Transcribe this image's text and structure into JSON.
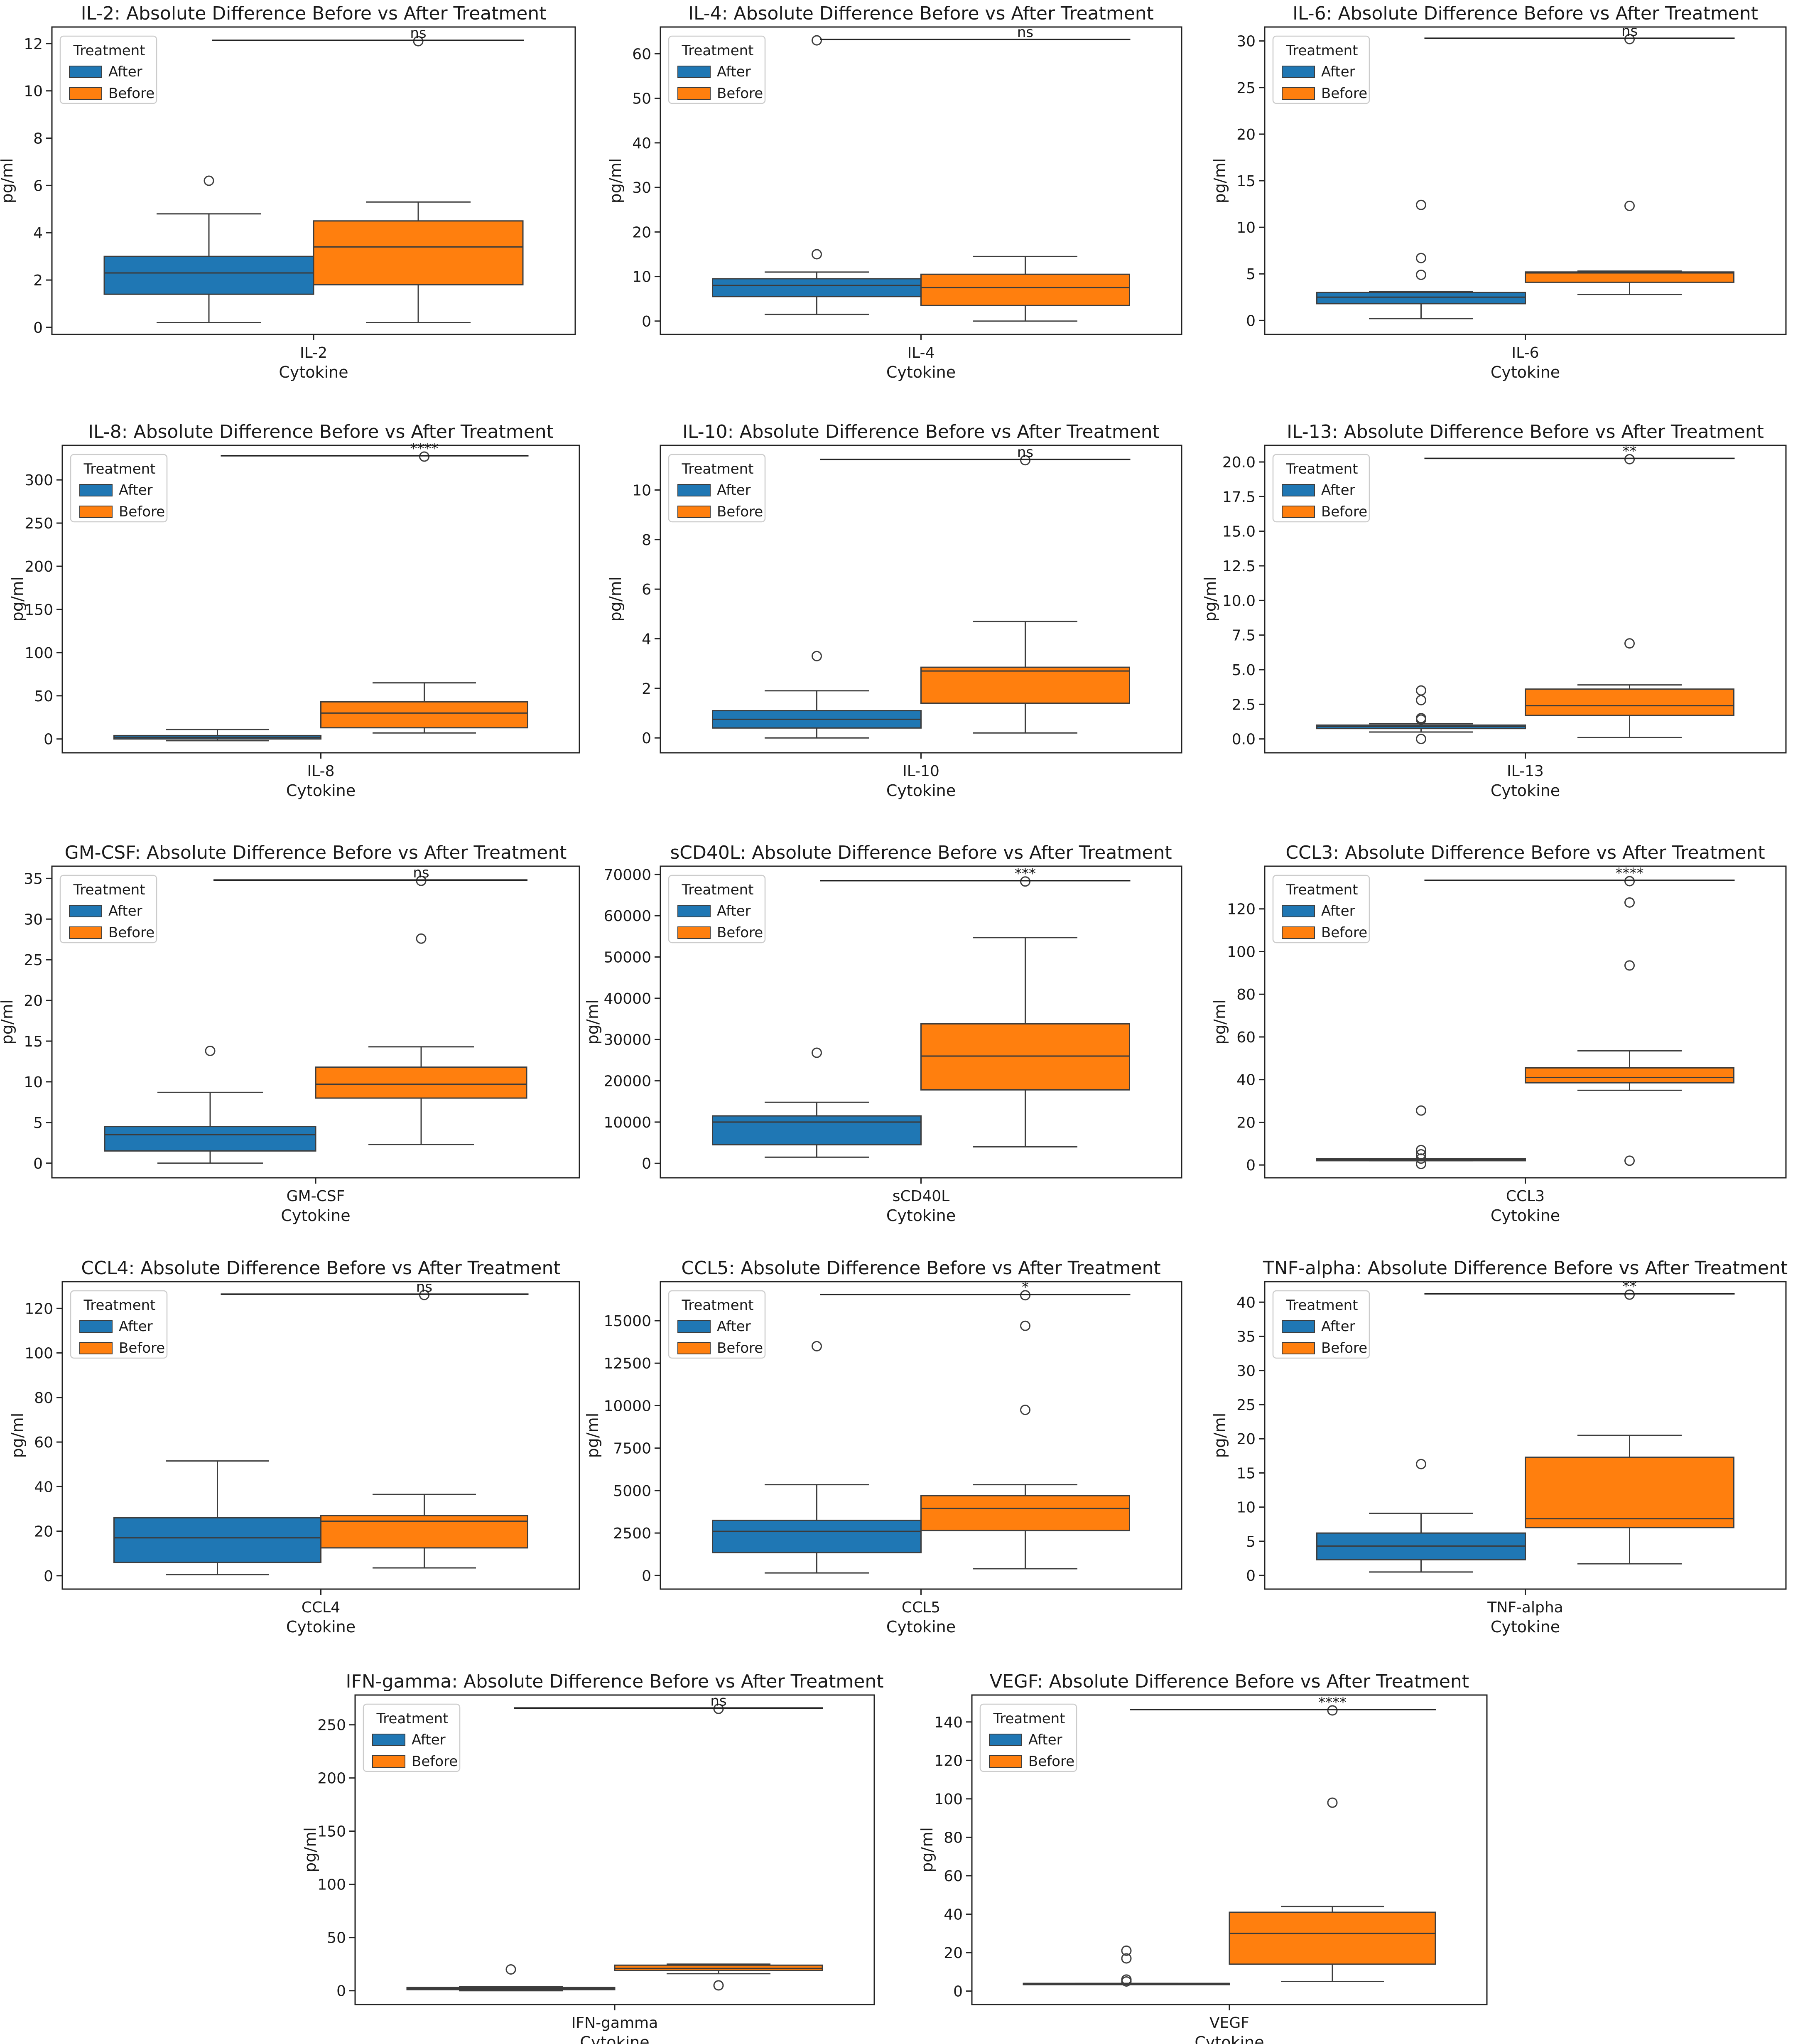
{
  "figure": {
    "legend_title": "Treatment"
  },
  "colors": {
    "after": "#1f77b4",
    "before": "#ff7f0e",
    "median_line": "#3b3b3b",
    "outline": "#3d3d3d"
  },
  "chart_data": [
    {
      "type": "box",
      "title": "IL-2: Absolute Difference Before vs After Treatment",
      "category": "IL-2",
      "xlabel": "Cytokine",
      "ylabel": "pg/ml",
      "ylim": [
        -0.3,
        12.7
      ],
      "yticks": [
        0,
        2,
        4,
        6,
        8,
        10,
        12
      ],
      "significance": "ns",
      "legend": {
        "title": "Treatment",
        "entries": [
          "After",
          "Before"
        ]
      },
      "series": [
        {
          "name": "After",
          "whisker_low": 0.2,
          "q1": 1.4,
          "median": 2.3,
          "q3": 3.0,
          "whisker_high": 4.8,
          "outliers": [
            6.2
          ]
        },
        {
          "name": "Before",
          "whisker_low": 0.2,
          "q1": 1.8,
          "median": 3.4,
          "q3": 4.5,
          "whisker_high": 5.3,
          "outliers": [
            12.1
          ]
        }
      ]
    },
    {
      "type": "box",
      "title": "IL-4: Absolute Difference Before vs After Treatment",
      "category": "IL-4",
      "xlabel": "Cytokine",
      "ylabel": "pg/ml",
      "ylim": [
        -3,
        66
      ],
      "yticks": [
        0,
        10,
        20,
        30,
        40,
        50,
        60
      ],
      "significance": "ns",
      "legend": {
        "title": "Treatment",
        "entries": [
          "After",
          "Before"
        ]
      },
      "series": [
        {
          "name": "After",
          "whisker_low": 1.5,
          "q1": 5.5,
          "median": 8.0,
          "q3": 9.5,
          "whisker_high": 11.0,
          "outliers": [
            15.0,
            63.0
          ]
        },
        {
          "name": "Before",
          "whisker_low": 0.0,
          "q1": 3.5,
          "median": 7.5,
          "q3": 10.5,
          "whisker_high": 14.5,
          "outliers": []
        }
      ]
    },
    {
      "type": "box",
      "title": "IL-6: Absolute Difference Before vs After Treatment",
      "category": "IL-6",
      "xlabel": "Cytokine",
      "ylabel": "pg/ml",
      "ylim": [
        -1.5,
        31.5
      ],
      "yticks": [
        0,
        5,
        10,
        15,
        20,
        25,
        30
      ],
      "significance": "ns",
      "legend": {
        "title": "Treatment",
        "entries": [
          "After",
          "Before"
        ]
      },
      "series": [
        {
          "name": "After",
          "whisker_low": 0.2,
          "q1": 1.8,
          "median": 2.5,
          "q3": 3.0,
          "whisker_high": 3.1,
          "outliers": [
            4.9,
            6.7,
            12.4
          ]
        },
        {
          "name": "Before",
          "whisker_low": 2.8,
          "q1": 4.1,
          "median": 5.1,
          "q3": 5.2,
          "whisker_high": 5.3,
          "outliers": [
            12.3,
            30.2
          ]
        }
      ]
    },
    {
      "type": "box",
      "title": "IL-8: Absolute Difference Before vs After Treatment",
      "category": "IL-8",
      "xlabel": "Cytokine",
      "ylabel": "pg/ml",
      "ylim": [
        -16,
        340
      ],
      "yticks": [
        0,
        50,
        100,
        150,
        200,
        250,
        300
      ],
      "significance": "****",
      "legend": {
        "title": "Treatment",
        "entries": [
          "After",
          "Before"
        ]
      },
      "series": [
        {
          "name": "After",
          "whisker_low": -2,
          "q1": 0,
          "median": 2,
          "q3": 4,
          "whisker_high": 11,
          "outliers": []
        },
        {
          "name": "Before",
          "whisker_low": 7,
          "q1": 13,
          "median": 30,
          "q3": 43,
          "whisker_high": 65,
          "outliers": [
            327
          ]
        }
      ]
    },
    {
      "type": "box",
      "title": "IL-10: Absolute Difference Before vs After Treatment",
      "category": "IL-10",
      "xlabel": "Cytokine",
      "ylabel": "pg/ml",
      "ylim": [
        -0.6,
        11.8
      ],
      "yticks": [
        0,
        2,
        4,
        6,
        8,
        10
      ],
      "significance": "ns",
      "legend": {
        "title": "Treatment",
        "entries": [
          "After",
          "Before"
        ]
      },
      "series": [
        {
          "name": "After",
          "whisker_low": 0.0,
          "q1": 0.4,
          "median": 0.75,
          "q3": 1.1,
          "whisker_high": 1.9,
          "outliers": [
            3.3
          ]
        },
        {
          "name": "Before",
          "whisker_low": 0.2,
          "q1": 1.4,
          "median": 2.7,
          "q3": 2.85,
          "whisker_high": 4.7,
          "outliers": [
            11.2
          ]
        }
      ]
    },
    {
      "type": "box",
      "title": "IL-13: Absolute Difference Before vs After Treatment",
      "category": "IL-13",
      "xlabel": "Cytokine",
      "ylabel": "pg/ml",
      "ylim": [
        -1,
        21.2
      ],
      "yticks": [
        0.0,
        2.5,
        5.0,
        7.5,
        10.0,
        12.5,
        15.0,
        17.5,
        20.0
      ],
      "significance": "**",
      "legend": {
        "title": "Treatment",
        "entries": [
          "After",
          "Before"
        ]
      },
      "series": [
        {
          "name": "After",
          "whisker_low": 0.5,
          "q1": 0.75,
          "median": 0.9,
          "q3": 1.0,
          "whisker_high": 1.1,
          "outliers": [
            0.0,
            1.5,
            1.4,
            2.8,
            3.5
          ]
        },
        {
          "name": "Before",
          "whisker_low": 0.1,
          "q1": 1.7,
          "median": 2.4,
          "q3": 3.6,
          "whisker_high": 3.9,
          "outliers": [
            6.9,
            20.2
          ]
        }
      ]
    },
    {
      "type": "box",
      "title": "GM-CSF: Absolute Difference Before vs After Treatment",
      "category": "GM-CSF",
      "xlabel": "Cytokine",
      "ylabel": "pg/ml",
      "ylim": [
        -1.8,
        36.5
      ],
      "yticks": [
        0,
        5,
        10,
        15,
        20,
        25,
        30,
        35
      ],
      "significance": "ns",
      "legend": {
        "title": "Treatment",
        "entries": [
          "After",
          "Before"
        ]
      },
      "series": [
        {
          "name": "After",
          "whisker_low": 0.0,
          "q1": 1.5,
          "median": 3.5,
          "q3": 4.5,
          "whisker_high": 8.7,
          "outliers": [
            13.8
          ]
        },
        {
          "name": "Before",
          "whisker_low": 2.3,
          "q1": 8.0,
          "median": 9.7,
          "q3": 11.8,
          "whisker_high": 14.3,
          "outliers": [
            27.6,
            34.7
          ]
        }
      ]
    },
    {
      "type": "box",
      "title": "sCD40L: Absolute Difference Before vs After Treatment",
      "category": "sCD40L",
      "xlabel": "Cytokine",
      "ylabel": "pg/ml",
      "ylim": [
        -3500,
        72000
      ],
      "yticks": [
        0,
        10000,
        20000,
        30000,
        40000,
        50000,
        60000,
        70000
      ],
      "significance": "***",
      "legend": {
        "title": "Treatment",
        "entries": [
          "After",
          "Before"
        ]
      },
      "series": [
        {
          "name": "After",
          "whisker_low": 1500,
          "q1": 4500,
          "median": 10000,
          "q3": 11500,
          "whisker_high": 14800,
          "outliers": [
            26800
          ]
        },
        {
          "name": "Before",
          "whisker_low": 4000,
          "q1": 17800,
          "median": 26000,
          "q3": 33800,
          "whisker_high": 54700,
          "outliers": [
            68300
          ]
        }
      ]
    },
    {
      "type": "box",
      "title": "CCL3: Absolute Difference Before vs After Treatment",
      "category": "CCL3",
      "xlabel": "Cytokine",
      "ylabel": "pg/ml",
      "ylim": [
        -6,
        140
      ],
      "yticks": [
        0,
        20,
        40,
        60,
        80,
        100,
        120
      ],
      "significance": "****",
      "legend": {
        "title": "Treatment",
        "entries": [
          "After",
          "Before"
        ]
      },
      "series": [
        {
          "name": "After",
          "whisker_low": 2,
          "q1": 2,
          "median": 2.5,
          "q3": 3,
          "whisker_high": 3,
          "outliers": [
            0.5,
            3,
            5,
            7,
            25.5
          ]
        },
        {
          "name": "Before",
          "whisker_low": 35,
          "q1": 38.5,
          "median": 41,
          "q3": 45.5,
          "whisker_high": 53.5,
          "outliers": [
            2,
            93.5,
            123,
            133
          ]
        }
      ]
    },
    {
      "type": "box",
      "title": "CCL4: Absolute Difference Before vs After Treatment",
      "category": "CCL4",
      "xlabel": "Cytokine",
      "ylabel": "pg/ml",
      "ylim": [
        -6,
        132
      ],
      "yticks": [
        0,
        20,
        40,
        60,
        80,
        100,
        120
      ],
      "significance": "ns",
      "legend": {
        "title": "Treatment",
        "entries": [
          "After",
          "Before"
        ]
      },
      "series": [
        {
          "name": "After",
          "whisker_low": 0.5,
          "q1": 6,
          "median": 17,
          "q3": 26,
          "whisker_high": 51.5,
          "outliers": []
        },
        {
          "name": "Before",
          "whisker_low": 3.5,
          "q1": 12.5,
          "median": 24.5,
          "q3": 27,
          "whisker_high": 36.5,
          "outliers": [
            126
          ]
        }
      ]
    },
    {
      "type": "box",
      "title": "CCL5: Absolute Difference Before vs After Treatment",
      "category": "CCL5",
      "xlabel": "Cytokine",
      "ylabel": "pg/ml",
      "ylim": [
        -800,
        17300
      ],
      "yticks": [
        0,
        2500,
        5000,
        7500,
        10000,
        12500,
        15000
      ],
      "significance": "*",
      "legend": {
        "title": "Treatment",
        "entries": [
          "After",
          "Before"
        ]
      },
      "series": [
        {
          "name": "After",
          "whisker_low": 150,
          "q1": 1350,
          "median": 2600,
          "q3": 3250,
          "whisker_high": 5350,
          "outliers": [
            13500
          ]
        },
        {
          "name": "Before",
          "whisker_low": 400,
          "q1": 2650,
          "median": 3950,
          "q3": 4700,
          "whisker_high": 5350,
          "outliers": [
            9750,
            14700,
            16500
          ]
        }
      ]
    },
    {
      "type": "box",
      "title": "TNF-alpha: Absolute Difference Before vs After Treatment",
      "category": "TNF-alpha",
      "xlabel": "Cytokine",
      "ylabel": "pg/ml",
      "ylim": [
        -2,
        43
      ],
      "yticks": [
        0,
        5,
        10,
        15,
        20,
        25,
        30,
        35,
        40
      ],
      "significance": "**",
      "legend": {
        "title": "Treatment",
        "entries": [
          "After",
          "Before"
        ]
      },
      "series": [
        {
          "name": "After",
          "whisker_low": 0.5,
          "q1": 2.3,
          "median": 4.3,
          "q3": 6.2,
          "whisker_high": 9.1,
          "outliers": [
            16.3
          ]
        },
        {
          "name": "Before",
          "whisker_low": 1.7,
          "q1": 7.0,
          "median": 8.3,
          "q3": 17.3,
          "whisker_high": 20.5,
          "outliers": [
            41.1
          ]
        }
      ]
    },
    {
      "type": "box",
      "title": "IFN-gamma: Absolute Difference Before vs After Treatment",
      "category": "IFN-gamma",
      "xlabel": "Cytokine",
      "ylabel": "pg/ml",
      "ylim": [
        -13,
        278
      ],
      "yticks": [
        0,
        50,
        100,
        150,
        200,
        250
      ],
      "significance": "ns",
      "legend": {
        "title": "Treatment",
        "entries": [
          "After",
          "Before"
        ]
      },
      "series": [
        {
          "name": "After",
          "whisker_low": 0,
          "q1": 1,
          "median": 2,
          "q3": 3,
          "whisker_high": 4,
          "outliers": [
            20
          ]
        },
        {
          "name": "Before",
          "whisker_low": 16,
          "q1": 19,
          "median": 21,
          "q3": 24,
          "whisker_high": 25,
          "outliers": [
            5,
            265
          ]
        }
      ]
    },
    {
      "type": "box",
      "title": "VEGF: Absolute Difference Before vs After Treatment",
      "category": "VEGF",
      "xlabel": "Cytokine",
      "ylabel": "pg/ml",
      "ylim": [
        -7,
        154
      ],
      "yticks": [
        0,
        20,
        40,
        60,
        80,
        100,
        120,
        140
      ],
      "significance": "****",
      "legend": {
        "title": "Treatment",
        "entries": [
          "After",
          "Before"
        ]
      },
      "series": [
        {
          "name": "After",
          "whisker_low": 4,
          "q1": 4,
          "median": 4,
          "q3": 4,
          "whisker_high": 4,
          "outliers": [
            5,
            6,
            17,
            21
          ]
        },
        {
          "name": "Before",
          "whisker_low": 5,
          "q1": 14,
          "median": 30,
          "q3": 41,
          "whisker_high": 44,
          "outliers": [
            98,
            146
          ]
        }
      ]
    }
  ]
}
